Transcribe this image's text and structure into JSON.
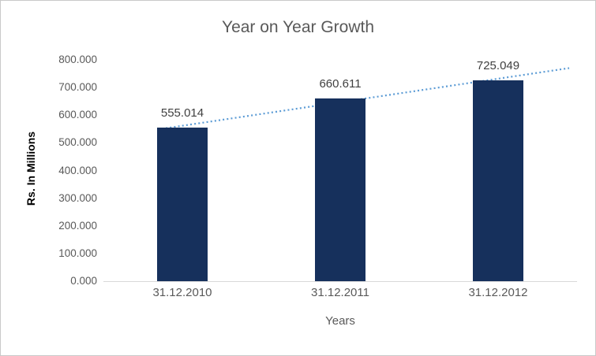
{
  "chart_data": {
    "type": "bar",
    "title": "Year on Year Growth",
    "categories": [
      "31.12.2010",
      "31.12.2011",
      "31.12.2012"
    ],
    "values": [
      555.014,
      660.611,
      725.049
    ],
    "data_labels": [
      "555.014",
      "660.611",
      "725.049"
    ],
    "xlabel": "Years",
    "ylabel": "Rs. In Millions",
    "ylim": [
      0,
      800
    ],
    "ytick_step": 100,
    "ytick_labels": [
      "0.000",
      "100.000",
      "200.000",
      "300.000",
      "400.000",
      "500.000",
      "600.000",
      "700.000",
      "800.000"
    ],
    "grid": false,
    "legend": "none",
    "trendline": {
      "type": "linear",
      "style": "dotted",
      "color": "#5b9bd5"
    },
    "colors": {
      "bar": "#16305c",
      "title": "#595959",
      "tick_label": "#595959",
      "data_label": "#404040",
      "axis_line": "#d9d9d9",
      "border": "#c9c9c9",
      "background": "#ffffff"
    }
  }
}
